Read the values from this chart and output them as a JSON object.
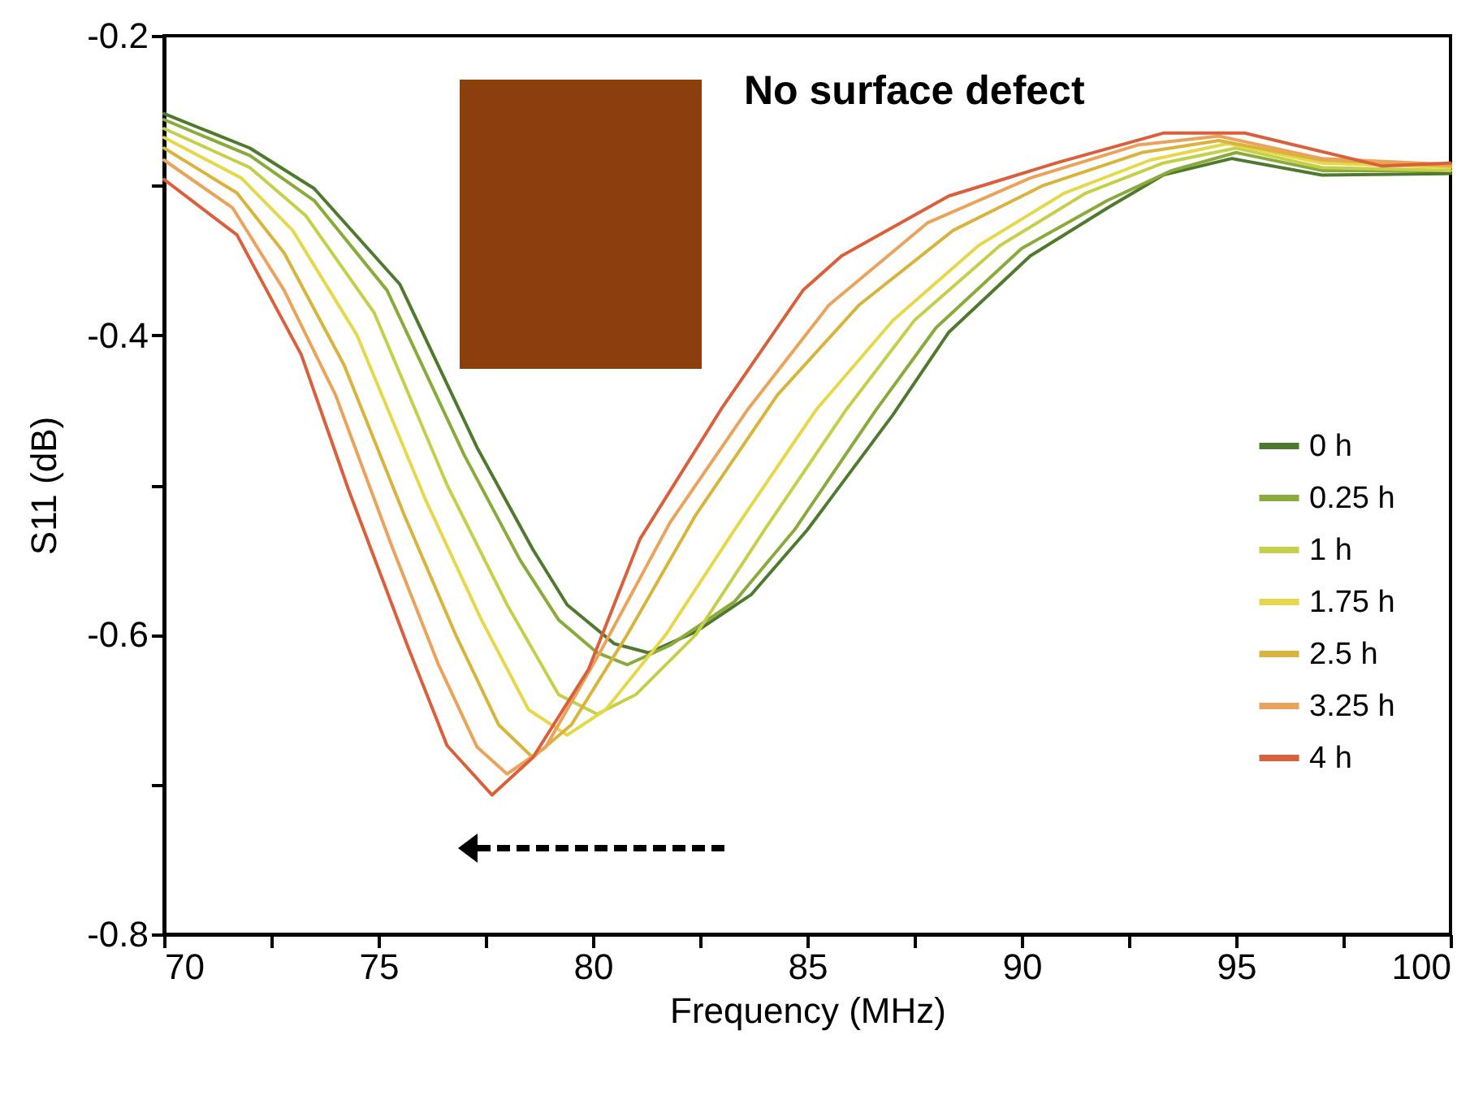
{
  "chart_data": {
    "type": "line",
    "xlabel": "Frequency (MHz)",
    "ylabel": "S11 (dB)",
    "annotations": [
      "No surface defect"
    ],
    "xlim": [
      70,
      100
    ],
    "ylim": [
      -0.8,
      -0.2
    ],
    "xticks": [
      70,
      {
        "value": 72.5,
        "label": null
      },
      75,
      {
        "value": 77.5,
        "label": null
      },
      80,
      {
        "value": 82.5,
        "label": null
      },
      85,
      {
        "value": 87.5,
        "label": null
      },
      90,
      {
        "value": 92.5,
        "label": null
      },
      95,
      {
        "value": 97.5,
        "label": null
      },
      100
    ],
    "yticks": [
      -0.8,
      {
        "value": -0.7,
        "label": null
      },
      -0.6,
      {
        "value": -0.5,
        "label": null
      },
      -0.4,
      {
        "value": -0.3,
        "label": null
      },
      -0.2
    ],
    "grid": false,
    "legend": "bottom right",
    "line_style": "solid",
    "marker": "none",
    "series": [
      {
        "name": "0 h",
        "color": "#4f7a2e",
        "x": [
          70,
          72,
          73.5,
          75.5,
          77.3,
          78.6,
          79.4,
          80.5,
          81.3,
          82.4,
          83.7,
          85,
          87,
          88.3,
          90.2,
          92,
          93.3,
          94.9,
          97,
          100
        ],
        "values": [
          -0.252,
          -0.275,
          -0.302,
          -0.366,
          -0.475,
          -0.543,
          -0.58,
          -0.606,
          -0.612,
          -0.598,
          -0.573,
          -0.53,
          -0.453,
          -0.398,
          -0.347,
          -0.315,
          -0.293,
          -0.282,
          -0.293,
          -0.292
        ]
      },
      {
        "name": "0.25 h",
        "color": "#8aaa3c",
        "x": [
          70,
          72,
          73.5,
          75.2,
          77,
          78.3,
          79.2,
          80.1,
          80.8,
          81.8,
          83.3,
          84.7,
          86.6,
          88,
          90,
          92,
          93.5,
          95,
          97,
          100
        ],
        "values": [
          -0.256,
          -0.28,
          -0.31,
          -0.37,
          -0.48,
          -0.55,
          -0.59,
          -0.612,
          -0.62,
          -0.607,
          -0.578,
          -0.53,
          -0.45,
          -0.395,
          -0.342,
          -0.31,
          -0.29,
          -0.278,
          -0.29,
          -0.29
        ]
      },
      {
        "name": "1 h",
        "color": "#c6cf4a",
        "x": [
          70,
          72,
          73.3,
          74.9,
          76.6,
          78,
          79.2,
          80.1,
          81,
          82.4,
          84,
          85.9,
          87.5,
          89.5,
          91.5,
          93.3,
          95,
          97,
          100
        ],
        "values": [
          -0.262,
          -0.288,
          -0.32,
          -0.385,
          -0.5,
          -0.58,
          -0.64,
          -0.653,
          -0.64,
          -0.6,
          -0.53,
          -0.45,
          -0.39,
          -0.34,
          -0.305,
          -0.285,
          -0.275,
          -0.288,
          -0.29
        ]
      },
      {
        "name": "1.75 h",
        "color": "#e6d84a",
        "x": [
          70,
          71.8,
          73,
          74.5,
          76.1,
          77.4,
          78.5,
          79.4,
          80.3,
          81.7,
          83.3,
          85.2,
          87,
          89,
          91,
          93,
          94.8,
          97,
          100
        ],
        "values": [
          -0.268,
          -0.295,
          -0.33,
          -0.4,
          -0.51,
          -0.59,
          -0.65,
          -0.667,
          -0.65,
          -0.6,
          -0.53,
          -0.45,
          -0.39,
          -0.34,
          -0.305,
          -0.283,
          -0.272,
          -0.285,
          -0.288
        ]
      },
      {
        "name": "2.5 h",
        "color": "#d9b43c",
        "x": [
          70,
          71.7,
          72.8,
          74.2,
          75.6,
          76.8,
          77.8,
          78.6,
          79.5,
          80.8,
          82.4,
          84.3,
          86.2,
          88.4,
          90.5,
          92.8,
          94.6,
          97,
          100
        ],
        "values": [
          -0.275,
          -0.305,
          -0.345,
          -0.42,
          -0.52,
          -0.6,
          -0.66,
          -0.682,
          -0.66,
          -0.6,
          -0.52,
          -0.44,
          -0.38,
          -0.33,
          -0.3,
          -0.278,
          -0.27,
          -0.283,
          -0.287
        ]
      },
      {
        "name": "3.25 h",
        "color": "#eba35c",
        "x": [
          70,
          71.6,
          72.8,
          74,
          75.3,
          76.4,
          77.3,
          78,
          78.9,
          80.2,
          81.8,
          83.6,
          85.5,
          87.8,
          90.2,
          92.7,
          94.6,
          97,
          100
        ],
        "values": [
          -0.283,
          -0.315,
          -0.37,
          -0.44,
          -0.54,
          -0.62,
          -0.675,
          -0.693,
          -0.675,
          -0.61,
          -0.525,
          -0.45,
          -0.38,
          -0.325,
          -0.295,
          -0.273,
          -0.267,
          -0.282,
          -0.286
        ]
      },
      {
        "name": "4 h",
        "color": "#d9603a",
        "x": [
          70,
          71.7,
          73.2,
          74.3,
          75.7,
          76.6,
          77.65,
          78.6,
          79.9,
          81.1,
          83,
          84.9,
          85.8,
          88.3,
          90.8,
          93.3,
          95.2,
          98.4,
          100
        ],
        "values": [
          -0.296,
          -0.333,
          -0.413,
          -0.503,
          -0.609,
          -0.674,
          -0.707,
          -0.682,
          -0.623,
          -0.536,
          -0.449,
          -0.37,
          -0.347,
          -0.307,
          -0.285,
          -0.265,
          -0.265,
          -0.287,
          -0.285
        ]
      }
    ]
  }
}
